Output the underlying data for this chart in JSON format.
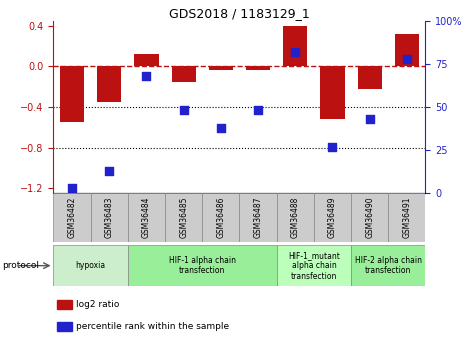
{
  "title": "GDS2018 / 1183129_1",
  "samples": [
    "GSM36482",
    "GSM36483",
    "GSM36484",
    "GSM36485",
    "GSM36486",
    "GSM36487",
    "GSM36488",
    "GSM36489",
    "GSM36490",
    "GSM36491"
  ],
  "log2_ratio": [
    -0.55,
    -0.35,
    0.12,
    -0.15,
    -0.04,
    -0.04,
    0.4,
    -0.52,
    -0.22,
    0.32
  ],
  "percentile_rank": [
    3,
    13,
    68,
    48,
    38,
    48,
    82,
    27,
    43,
    78
  ],
  "ylim_left": [
    -1.25,
    0.45
  ],
  "ylim_right": [
    0,
    100
  ],
  "yticks_left": [
    -1.2,
    -0.8,
    -0.4,
    0.0,
    0.4
  ],
  "yticks_right": [
    0,
    25,
    50,
    75,
    100
  ],
  "bar_color": "#bb1111",
  "dot_color": "#2222cc",
  "dotted_lines": [
    -0.4,
    -0.8
  ],
  "protocols": [
    {
      "label": "hypoxia",
      "start": 0,
      "end": 2,
      "color": "#cceecc"
    },
    {
      "label": "HIF-1 alpha chain\ntransfection",
      "start": 2,
      "end": 6,
      "color": "#99ee99"
    },
    {
      "label": "HIF-1_mutant\nalpha chain\ntransfection",
      "start": 6,
      "end": 8,
      "color": "#bbffbb"
    },
    {
      "label": "HIF-2 alpha chain\ntransfection",
      "start": 8,
      "end": 10,
      "color": "#99ee99"
    }
  ],
  "legend_items": [
    {
      "label": "log2 ratio",
      "color": "#bb1111"
    },
    {
      "label": "percentile rank within the sample",
      "color": "#2222cc"
    }
  ],
  "bar_width": 0.65,
  "dot_size": 40,
  "left_tick_color": "#bb1111",
  "right_tick_color": "#2222cc",
  "sample_box_color": "#cccccc",
  "protocol_label": "protocol"
}
